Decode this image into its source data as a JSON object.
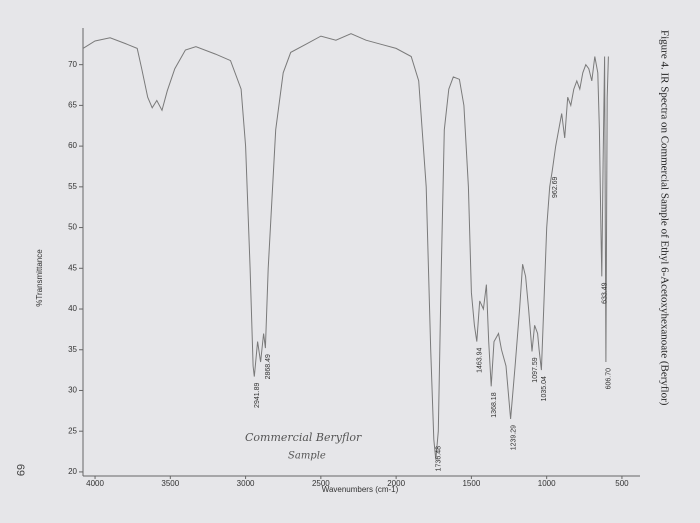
{
  "chart_data": {
    "type": "line",
    "title": "Figure 4. IR Spectra on Commercial Sample of Ethyl 6-Acetoxyhexanoate (Beryflor)",
    "xlabel": "Wavenumbers (cm-1)",
    "ylabel": "%Transmittance",
    "page_number": "69",
    "handwritten_note": [
      "Commercial Beryflor",
      "Sample"
    ],
    "xlim": [
      4080,
      380
    ],
    "ylim": [
      19.5,
      74.5
    ],
    "xticks": [
      4000,
      3500,
      3000,
      2500,
      2000,
      1500,
      1000,
      500
    ],
    "yticks": [
      20,
      25,
      30,
      35,
      40,
      45,
      50,
      55,
      60,
      65,
      70
    ],
    "peak_labels": [
      "2941.89",
      "2868.49",
      "1736.48",
      "1463.94",
      "1368.18",
      "1239.29",
      "1097.59",
      "1035.04",
      "962.69",
      "633.49",
      "606.70"
    ],
    "series": [
      {
        "color": "#7a7a7a",
        "x": [
          4080,
          4000,
          3900,
          3800,
          3720,
          3690,
          3650,
          3620,
          3590,
          3555,
          3520,
          3470,
          3400,
          3330,
          3200,
          3100,
          3030,
          3000,
          2970,
          2950,
          2941.89,
          2920,
          2900,
          2880,
          2868.49,
          2850,
          2800,
          2750,
          2700,
          2600,
          2500,
          2400,
          2300,
          2200,
          2100,
          2000,
          1900,
          1850,
          1800,
          1770,
          1750,
          1736.48,
          1720,
          1700,
          1680,
          1650,
          1620,
          1580,
          1550,
          1520,
          1500,
          1480,
          1463.94,
          1445,
          1420,
          1400,
          1385,
          1368.18,
          1350,
          1320,
          1300,
          1270,
          1239.29,
          1210,
          1180,
          1160,
          1140,
          1120,
          1097.59,
          1080,
          1060,
          1050,
          1035.04,
          1020,
          1000,
          980,
          962.69,
          940,
          920,
          900,
          880,
          860,
          840,
          820,
          800,
          780,
          760,
          740,
          720,
          700,
          680,
          660,
          650,
          640,
          633.49,
          625,
          615,
          606.7,
          598,
          590
        ],
        "values": [
          72.0,
          72.9,
          73.3,
          72.6,
          72.0,
          69.5,
          66.0,
          64.7,
          65.6,
          64.4,
          66.8,
          69.5,
          71.8,
          72.2,
          71.3,
          70.5,
          67.0,
          60.0,
          45.0,
          33.0,
          31.7,
          36.0,
          33.5,
          37.0,
          35.2,
          45.0,
          62.0,
          69.0,
          71.5,
          72.5,
          73.5,
          73.0,
          73.8,
          73.0,
          72.5,
          72.0,
          71.0,
          68.0,
          55.0,
          35.0,
          24.0,
          21.5,
          25.0,
          45.0,
          62.0,
          67.0,
          68.5,
          68.2,
          65.0,
          55.0,
          42.0,
          38.0,
          36.0,
          41.0,
          40.0,
          43.0,
          36.0,
          30.5,
          36.0,
          37.0,
          35.0,
          33.0,
          26.5,
          33.0,
          40.0,
          45.5,
          44.0,
          40.0,
          34.8,
          38.0,
          37.0,
          35.0,
          32.5,
          40.0,
          50.0,
          55.0,
          57.0,
          60.0,
          62.0,
          64.0,
          61.0,
          66.0,
          65.0,
          67.0,
          68.0,
          67.0,
          69.0,
          70.0,
          69.5,
          68.0,
          71.0,
          69.0,
          62.0,
          50.0,
          44.0,
          58.0,
          71.0,
          33.5,
          66.0,
          71.0
        ]
      }
    ]
  }
}
